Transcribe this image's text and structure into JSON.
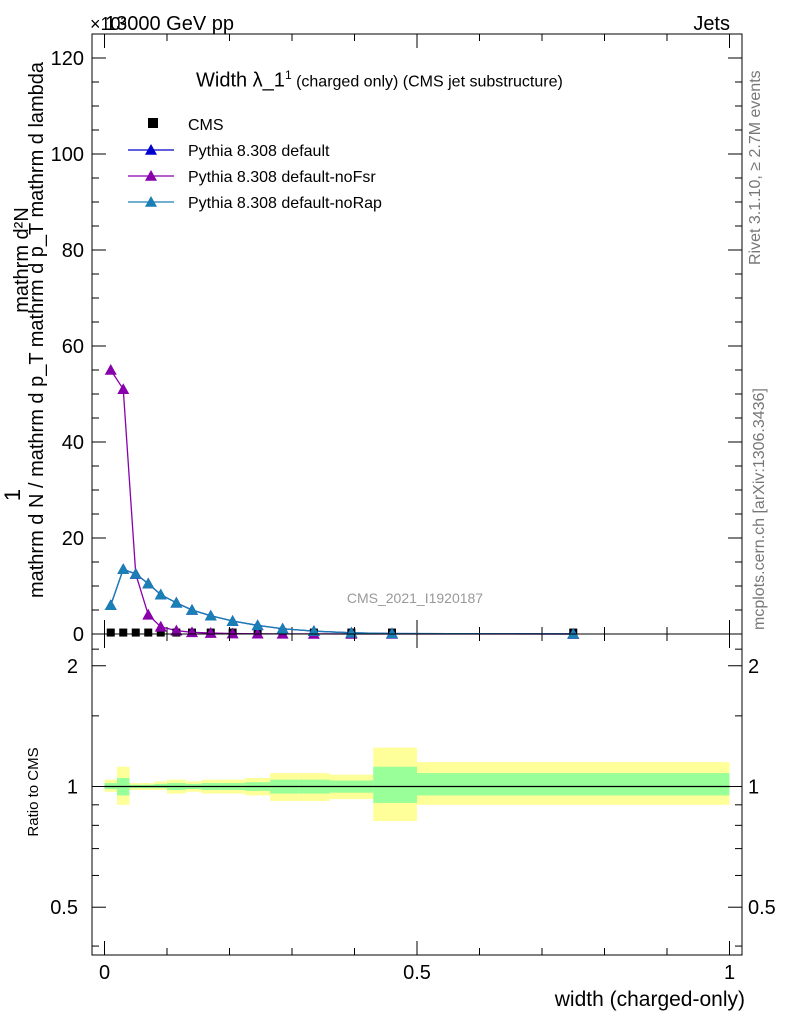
{
  "header": {
    "left": "13000 GeV pp",
    "right": "Jets",
    "exponent": "×10³"
  },
  "side_texts": {
    "rivet": "Rivet 3.1.10, ≥ 2.7M events",
    "mcplots": "mcplots.cern.ch [arXiv:1306.3436]"
  },
  "watermark": "CMS_2021_I1920187",
  "colors": {
    "cms": "#000000",
    "default": "#0000cc",
    "noFsr": "#8800aa",
    "noRap": "#1a7fb5",
    "band_outer": "#ffff99",
    "band_inner": "#99ff99"
  },
  "chart_data": [
    {
      "type": "line",
      "title": "Width λ_1¹ (charged only) (CMS jet substructure)",
      "title_main": "Width λ_1",
      "title_sup": "1",
      "title_rest": " (charged only) (CMS jet substructure)",
      "ylabel_numerator": "mathrm d²N",
      "ylabel_denominator": "mathrm d N / mathrm d p_T mathrm d p_T mathrm d lambda",
      "ylabel_one": "1",
      "xlim": [
        -0.02,
        1.02
      ],
      "ylim": [
        0,
        125
      ],
      "y_unit_scale": "×10³",
      "yticks": [
        0,
        20,
        40,
        60,
        80,
        100,
        120
      ],
      "legend_position": "top-left",
      "legend": [
        "CMS",
        "Pythia 8.308 default",
        "Pythia 8.308 default-noFsr",
        "Pythia 8.308 default-noRap"
      ],
      "x": [
        0.01,
        0.03,
        0.05,
        0.07,
        0.09,
        0.115,
        0.14,
        0.17,
        0.205,
        0.245,
        0.285,
        0.335,
        0.395,
        0.46,
        0.75
      ],
      "series": [
        {
          "name": "CMS",
          "marker": "square",
          "values": [
            0.3,
            0.3,
            0.3,
            0.3,
            0.3,
            0.3,
            0.3,
            0.3,
            0.3,
            0.3,
            0.3,
            0.3,
            0.3,
            0.3,
            0.3
          ]
        },
        {
          "name": "Pythia 8.308 default",
          "marker": "triangle",
          "values": [
            6.0,
            13.5,
            12.5,
            10.5,
            8.2,
            6.5,
            5.0,
            3.8,
            2.7,
            1.8,
            1.1,
            0.6,
            0.25,
            0.1,
            0.01
          ]
        },
        {
          "name": "Pythia 8.308 default-noFsr",
          "marker": "triangle",
          "values": [
            55.0,
            51.0,
            12.5,
            4.0,
            1.5,
            0.7,
            0.35,
            0.2,
            0.1,
            0.05,
            0.03,
            0.02,
            0.01,
            0.01,
            0.0
          ]
        },
        {
          "name": "Pythia 8.308 default-noRap",
          "marker": "triangle",
          "values": [
            6.0,
            13.5,
            12.5,
            10.5,
            8.2,
            6.5,
            5.0,
            3.8,
            2.7,
            1.8,
            1.1,
            0.6,
            0.25,
            0.1,
            0.01
          ]
        }
      ]
    },
    {
      "type": "area",
      "ylabel": "Ratio to CMS",
      "xlabel": "width (charged-only)",
      "xlim": [
        -0.02,
        1.02
      ],
      "ylim": [
        0.38,
        2.4
      ],
      "y_scale": "log",
      "yticks": [
        0.5,
        1,
        2
      ],
      "xticks": [
        0,
        0.5,
        1
      ],
      "xtick_labels": [
        "0",
        "0.5",
        "1"
      ],
      "bins": [
        {
          "lo": 0.0,
          "hi": 0.02,
          "outer": [
            0.97,
            1.04
          ],
          "inner": [
            0.985,
            1.02
          ]
        },
        {
          "lo": 0.02,
          "hi": 0.04,
          "outer": [
            0.9,
            1.12
          ],
          "inner": [
            0.95,
            1.05
          ]
        },
        {
          "lo": 0.04,
          "hi": 0.06,
          "outer": [
            0.98,
            1.02
          ],
          "inner": [
            0.99,
            1.01
          ]
        },
        {
          "lo": 0.06,
          "hi": 0.08,
          "outer": [
            0.98,
            1.02
          ],
          "inner": [
            0.99,
            1.01
          ]
        },
        {
          "lo": 0.08,
          "hi": 0.1,
          "outer": [
            0.98,
            1.03
          ],
          "inner": [
            0.99,
            1.015
          ]
        },
        {
          "lo": 0.1,
          "hi": 0.13,
          "outer": [
            0.96,
            1.04
          ],
          "inner": [
            0.98,
            1.02
          ]
        },
        {
          "lo": 0.13,
          "hi": 0.155,
          "outer": [
            0.97,
            1.03
          ],
          "inner": [
            0.985,
            1.015
          ]
        },
        {
          "lo": 0.155,
          "hi": 0.185,
          "outer": [
            0.96,
            1.04
          ],
          "inner": [
            0.98,
            1.02
          ]
        },
        {
          "lo": 0.185,
          "hi": 0.225,
          "outer": [
            0.96,
            1.04
          ],
          "inner": [
            0.98,
            1.02
          ]
        },
        {
          "lo": 0.225,
          "hi": 0.265,
          "outer": [
            0.95,
            1.05
          ],
          "inner": [
            0.975,
            1.025
          ]
        },
        {
          "lo": 0.265,
          "hi": 0.31,
          "outer": [
            0.92,
            1.08
          ],
          "inner": [
            0.96,
            1.04
          ]
        },
        {
          "lo": 0.31,
          "hi": 0.36,
          "outer": [
            0.92,
            1.08
          ],
          "inner": [
            0.96,
            1.04
          ]
        },
        {
          "lo": 0.36,
          "hi": 0.43,
          "outer": [
            0.93,
            1.07
          ],
          "inner": [
            0.965,
            1.035
          ]
        },
        {
          "lo": 0.43,
          "hi": 0.5,
          "outer": [
            0.82,
            1.25
          ],
          "inner": [
            0.91,
            1.12
          ]
        },
        {
          "lo": 0.5,
          "hi": 1.0,
          "outer": [
            0.9,
            1.15
          ],
          "inner": [
            0.95,
            1.08
          ]
        }
      ],
      "reference": 1.0
    }
  ]
}
